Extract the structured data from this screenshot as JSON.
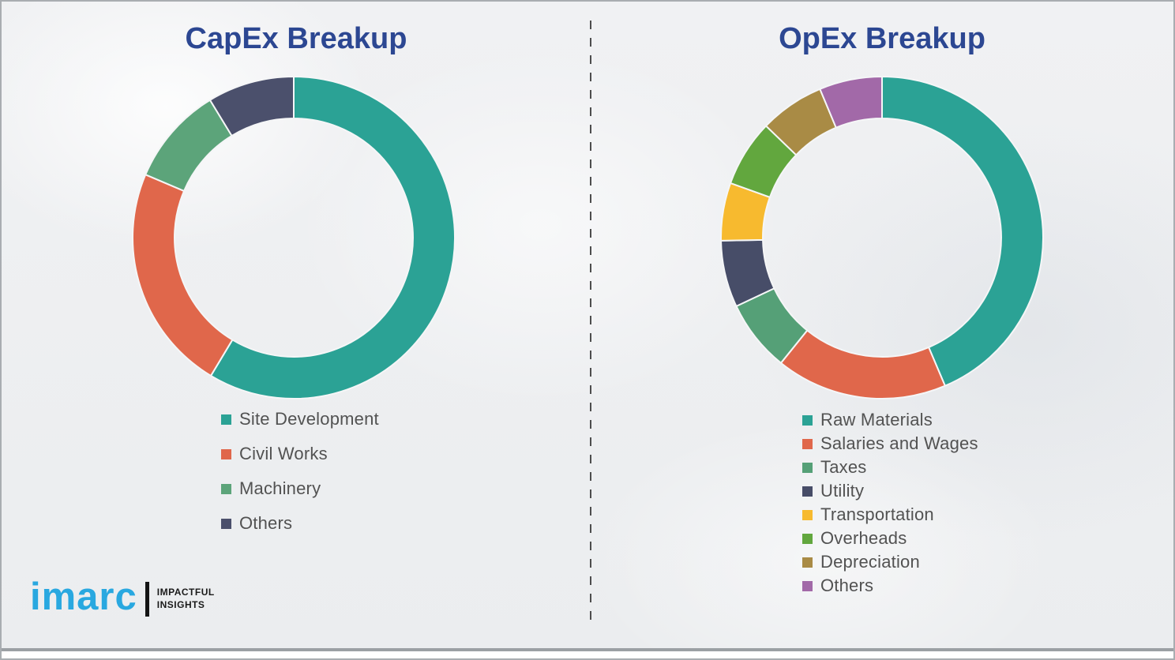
{
  "page": {
    "background_color": "#edeff1",
    "border_color": "#a9adb1",
    "divider_color": "#4d4d4d"
  },
  "chart_data": [
    {
      "type": "pie",
      "subtype": "donut",
      "id": "capex",
      "title": "CapEx Breakup",
      "labels": [
        "Site Development",
        "Civil Works",
        "Machinery",
        "Others"
      ],
      "values": [
        58.6,
        22.8,
        9.9,
        8.7
      ],
      "colors": [
        "#2BA295",
        "#E0674B",
        "#5CA47A",
        "#4B506C"
      ],
      "start_angle_deg": 0,
      "direction": "clockwise",
      "inner_radius_ratio": 0.74,
      "legend_position": "below-left",
      "values_note": "percent share estimated from arc angles; no numeric labels shown in image"
    },
    {
      "type": "pie",
      "subtype": "donut",
      "id": "opex",
      "title": "OpEx Breakup",
      "labels": [
        "Raw Materials",
        "Salaries and Wages",
        "Taxes",
        "Utility",
        "Transportation",
        "Overheads",
        "Depreciation",
        "Others"
      ],
      "values": [
        43.6,
        17.2,
        7.2,
        6.7,
        5.8,
        6.7,
        6.5,
        6.3
      ],
      "colors": [
        "#2BA295",
        "#E0674B",
        "#55A077",
        "#474D68",
        "#F7BA2F",
        "#62A73E",
        "#A98B45",
        "#A269A8"
      ],
      "start_angle_deg": 0,
      "direction": "clockwise",
      "inner_radius_ratio": 0.74,
      "legend_position": "below-left",
      "values_note": "percent share estimated from arc angles; no numeric labels shown in image"
    }
  ],
  "title_color": "#2c4792",
  "logo": {
    "brand": "imarc",
    "brand_color": "#29A8E0",
    "tagline_line1": "IMPACTFUL",
    "tagline_line2": "INSIGHTS"
  }
}
